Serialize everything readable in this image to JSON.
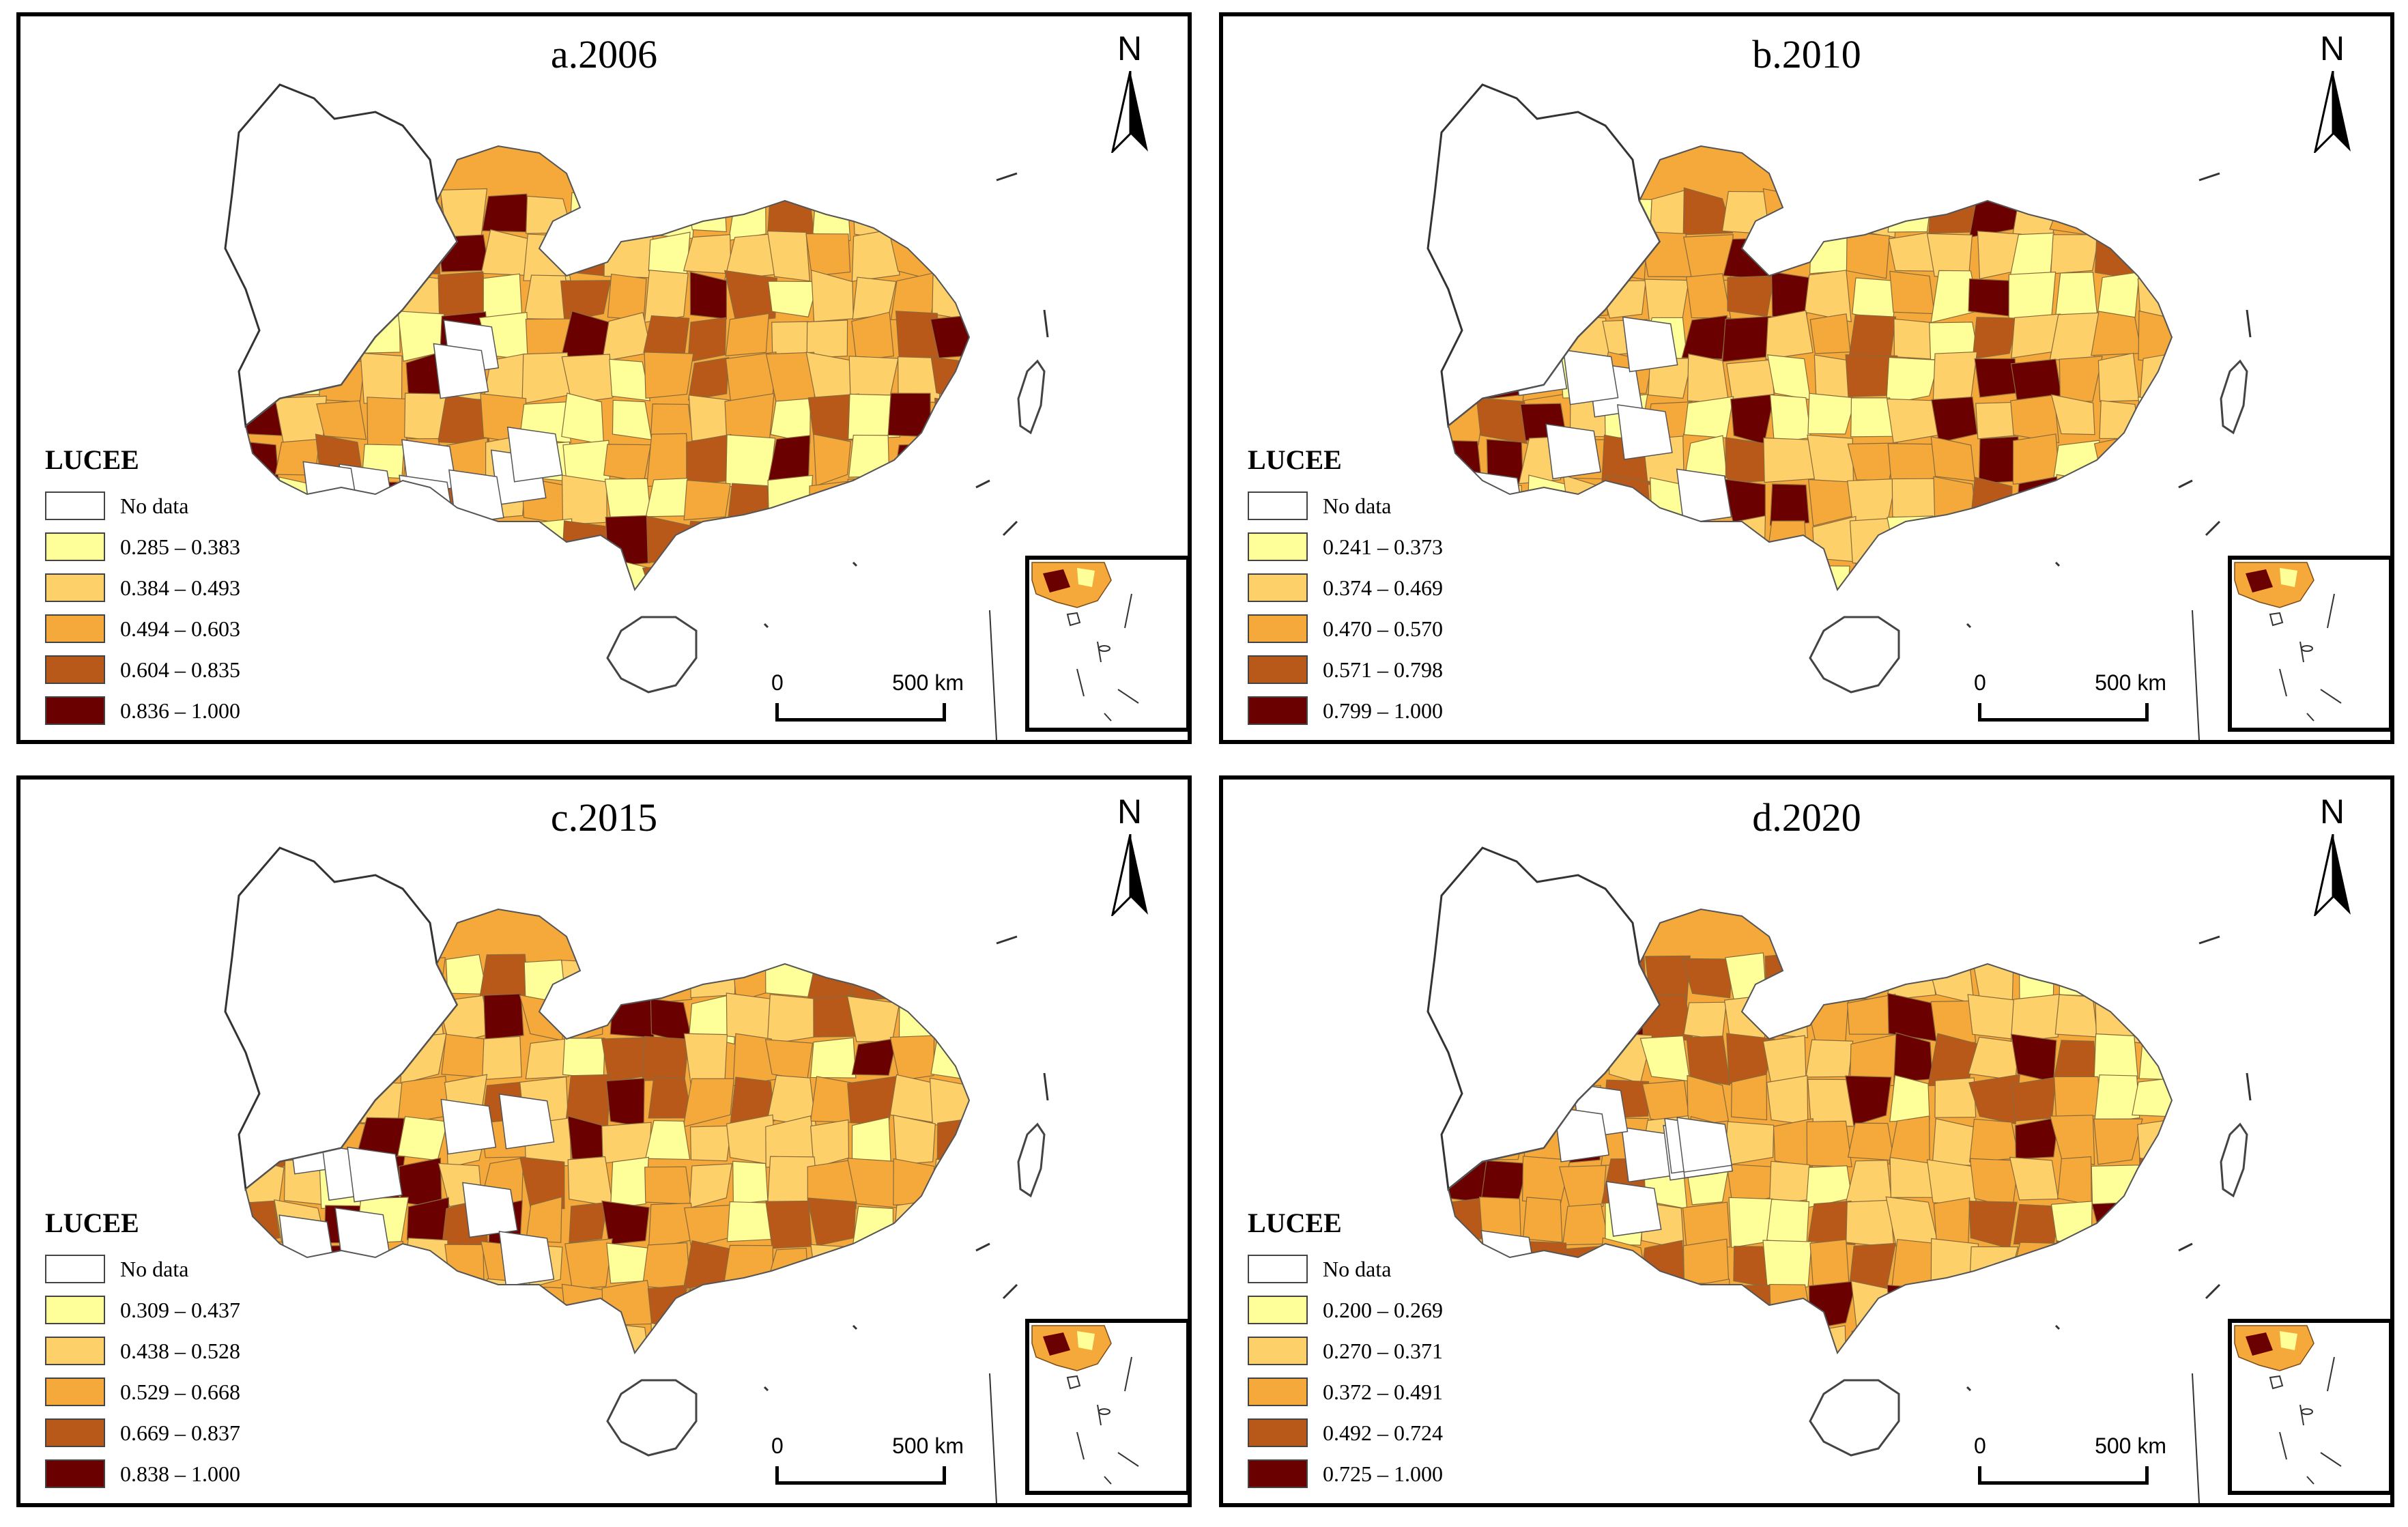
{
  "legend_title": "LUCEE",
  "no_data_label": "No data",
  "north_label": "N",
  "scale": {
    "start": "0",
    "end": "500 km"
  },
  "colors": {
    "no_data": "#ffffff",
    "class1": "#ffff99",
    "class2": "#fdd06a",
    "class3": "#f5a93a",
    "class4": "#b8591a",
    "class5": "#6b0000"
  },
  "panels": [
    {
      "title": "a.2006",
      "classes": [
        "0.285 – 0.383",
        "0.384 – 0.493",
        "0.494 – 0.603",
        "0.604 – 0.835",
        "0.836 – 1.000"
      ]
    },
    {
      "title": "b.2010",
      "classes": [
        "0.241 – 0.373",
        "0.374 – 0.469",
        "0.470 – 0.570",
        "0.571 – 0.798",
        "0.799 – 1.000"
      ]
    },
    {
      "title": "c.2015",
      "classes": [
        "0.309 – 0.437",
        "0.438 – 0.528",
        "0.529 – 0.668",
        "0.669 – 0.837",
        "0.838 – 1.000"
      ]
    },
    {
      "title": "d.2020",
      "classes": [
        "0.200 – 0.269",
        "0.270 – 0.371",
        "0.372 – 0.491",
        "0.492 – 0.724",
        "0.725 – 1.000"
      ]
    }
  ]
}
